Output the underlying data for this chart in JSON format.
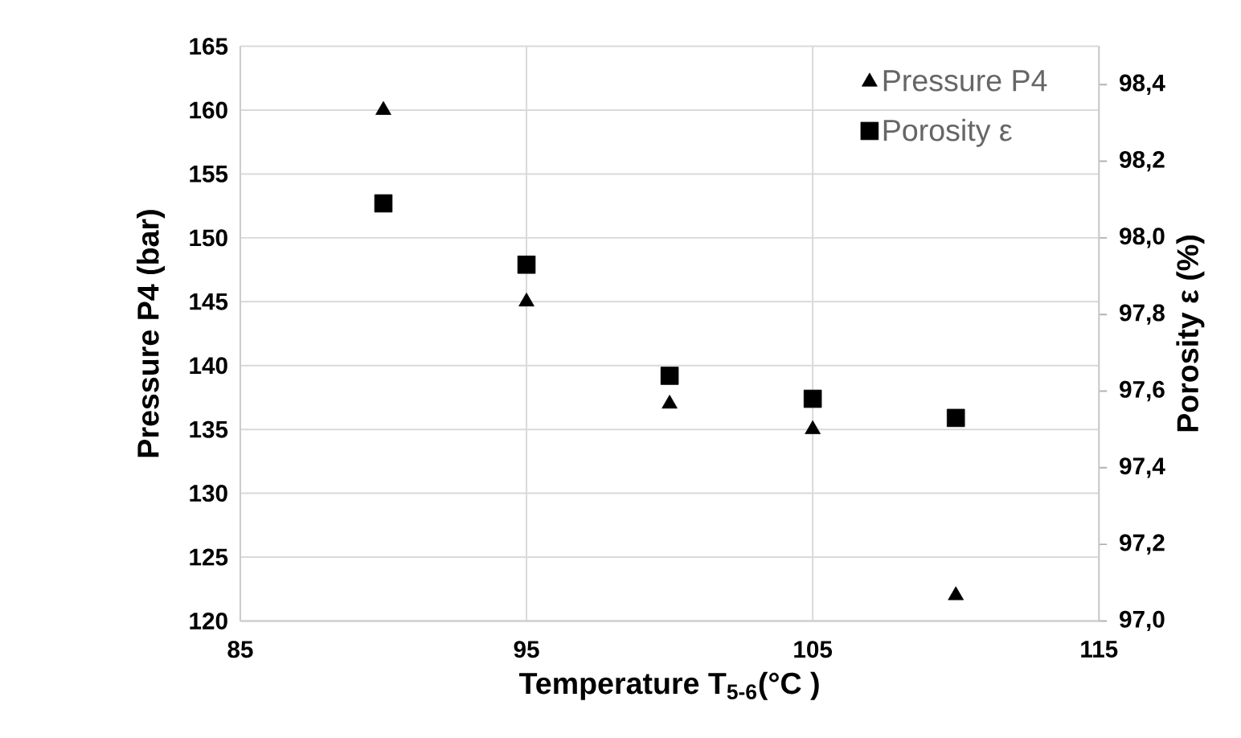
{
  "chart_data": {
    "type": "scatter",
    "xlabel": "Temperature T$_{5-6}$(°C )",
    "ylabel": "Pressure P4 (bar)",
    "y2label": "Porosity ε  (%)",
    "x": [
      90,
      95,
      100,
      105,
      110
    ],
    "series": [
      {
        "name": "Pressure P4",
        "color": "#000000",
        "marker": "triangle",
        "values": [
          160,
          145,
          137,
          135,
          122
        ]
      },
      {
        "name": "Porosity ε",
        "color": "#000000",
        "marker": "square",
        "axis": "y2",
        "values": [
          98.09,
          97.93,
          97.64,
          97.58,
          97.53
        ]
      }
    ],
    "xlim": [
      85,
      115
    ],
    "xticks": [
      85,
      95,
      105,
      115
    ],
    "ylim": [
      120,
      165
    ],
    "yticks": [
      120,
      125,
      130,
      135,
      140,
      145,
      150,
      155,
      160,
      165
    ],
    "y2lim": [
      97.0,
      98.5
    ],
    "y2ticks": [
      {
        "value": 97.0,
        "label": "97,0"
      },
      {
        "value": 97.2,
        "label": "97,2"
      },
      {
        "value": 97.4,
        "label": "97,4"
      },
      {
        "value": 97.6,
        "label": "97,6"
      },
      {
        "value": 97.8,
        "label": "97,8"
      },
      {
        "value": 98.0,
        "label": "98,0"
      },
      {
        "value": 98.2,
        "label": "98,2"
      },
      {
        "value": 98.4,
        "label": "98,4"
      }
    ],
    "grid": true,
    "legend": "top right"
  }
}
